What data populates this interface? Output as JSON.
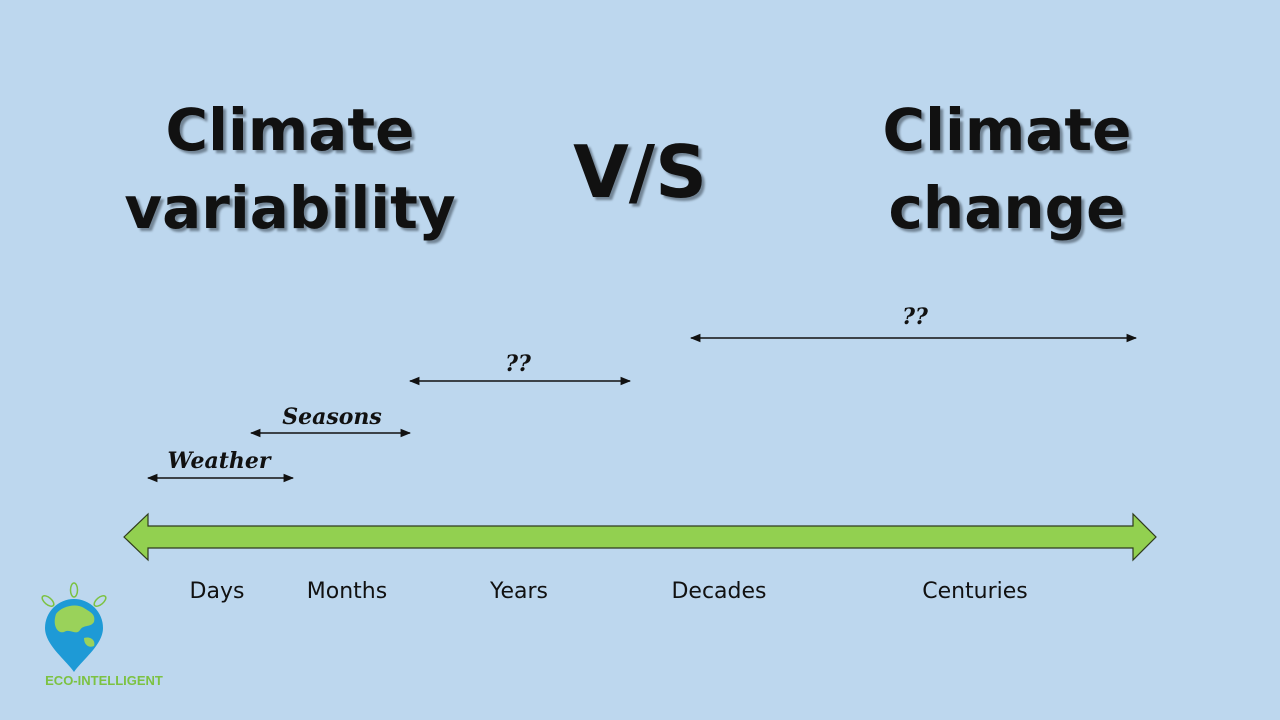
{
  "left_title": {
    "line1": "Climate",
    "line2": "variability"
  },
  "versus": "V/S",
  "right_title": {
    "line1": "Climate",
    "line2": "change"
  },
  "spans": [
    {
      "label": "Weather",
      "from": "Days",
      "to": "Months"
    },
    {
      "label": "Seasons",
      "from": "Months",
      "to": "Years"
    },
    {
      "label": "??",
      "from": "Years",
      "to": "Decades"
    },
    {
      "label": "??",
      "from": "Decades",
      "to": "Centuries"
    }
  ],
  "timescale": [
    "Days",
    "Months",
    "Years",
    "Decades",
    "Centuries"
  ],
  "logo": {
    "text": "ECO-INTELLIGENT"
  },
  "colors": {
    "background": "#bdd7ee",
    "arrow": "#92d050",
    "logo_blue": "#1e9ad6",
    "logo_green": "#7cc242"
  }
}
